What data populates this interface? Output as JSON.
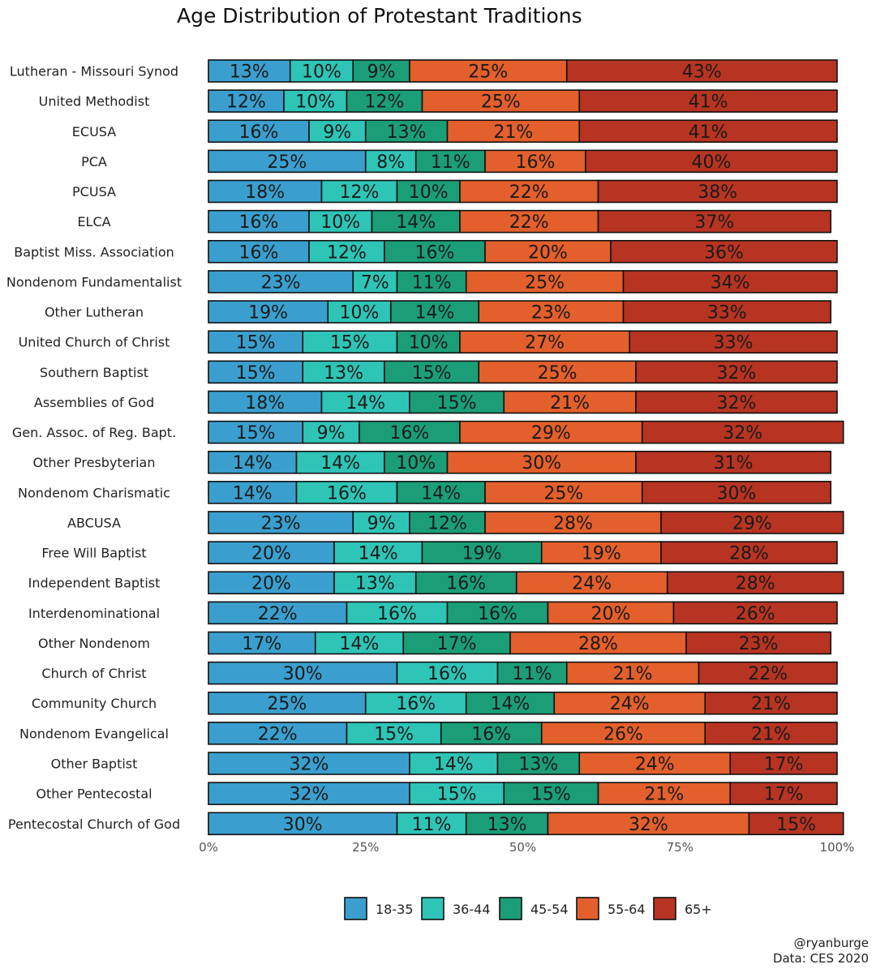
{
  "chart_data": {
    "type": "bar",
    "orientation": "horizontal",
    "stacked": true,
    "title": "Age Distribution of Protestant Traditions",
    "xlim": [
      0,
      100
    ],
    "x_ticks": [
      "0%",
      "25%",
      "50%",
      "75%",
      "100%"
    ],
    "legend_position": "bottom",
    "categories": [
      "Lutheran - Missouri Synod",
      "United Methodist",
      "ECUSA",
      "PCA",
      "PCUSA",
      "ELCA",
      "Baptist Miss. Association",
      "Nondenom Fundamentalist",
      "Other Lutheran",
      "United Church of Christ",
      "Southern Baptist",
      "Assemblies of God",
      "Gen. Assoc. of Reg. Bapt.",
      "Other Presbyterian",
      "Nondenom Charismatic",
      "ABCUSA",
      "Free Will Baptist",
      "Independent Baptist",
      "Interdenominational",
      "Other Nondenom",
      "Church of Christ",
      "Community Church",
      "Nondenom Evangelical",
      "Other Baptist",
      "Other Pentecostal",
      "Pentecostal Church of God"
    ],
    "series": [
      {
        "name": "18-35",
        "color": "#3a9fce",
        "values": [
          13,
          12,
          16,
          25,
          18,
          16,
          16,
          23,
          19,
          15,
          15,
          18,
          15,
          14,
          14,
          23,
          20,
          20,
          22,
          17,
          30,
          25,
          22,
          32,
          32,
          30
        ]
      },
      {
        "name": "36-44",
        "color": "#2ec4b6",
        "values": [
          10,
          10,
          9,
          8,
          12,
          10,
          12,
          7,
          10,
          15,
          13,
          14,
          9,
          14,
          16,
          9,
          14,
          13,
          16,
          14,
          16,
          16,
          15,
          14,
          15,
          11
        ]
      },
      {
        "name": "45-54",
        "color": "#1b9e77",
        "values": [
          9,
          12,
          13,
          11,
          10,
          14,
          16,
          11,
          14,
          10,
          15,
          15,
          16,
          10,
          14,
          12,
          19,
          16,
          16,
          17,
          11,
          14,
          16,
          13,
          15,
          13
        ]
      },
      {
        "name": "55-64",
        "color": "#e35f2c",
        "values": [
          25,
          25,
          21,
          16,
          22,
          22,
          20,
          25,
          23,
          27,
          25,
          21,
          29,
          30,
          25,
          28,
          19,
          24,
          20,
          28,
          21,
          24,
          26,
          24,
          21,
          32
        ]
      },
      {
        "name": "65+",
        "color": "#b73422",
        "values": [
          43,
          41,
          41,
          40,
          38,
          37,
          36,
          34,
          33,
          33,
          32,
          32,
          32,
          31,
          30,
          29,
          28,
          28,
          26,
          23,
          22,
          21,
          21,
          17,
          17,
          15
        ]
      }
    ]
  },
  "credits": {
    "handle": "@ryanburge",
    "source": "Data: CES 2020"
  }
}
